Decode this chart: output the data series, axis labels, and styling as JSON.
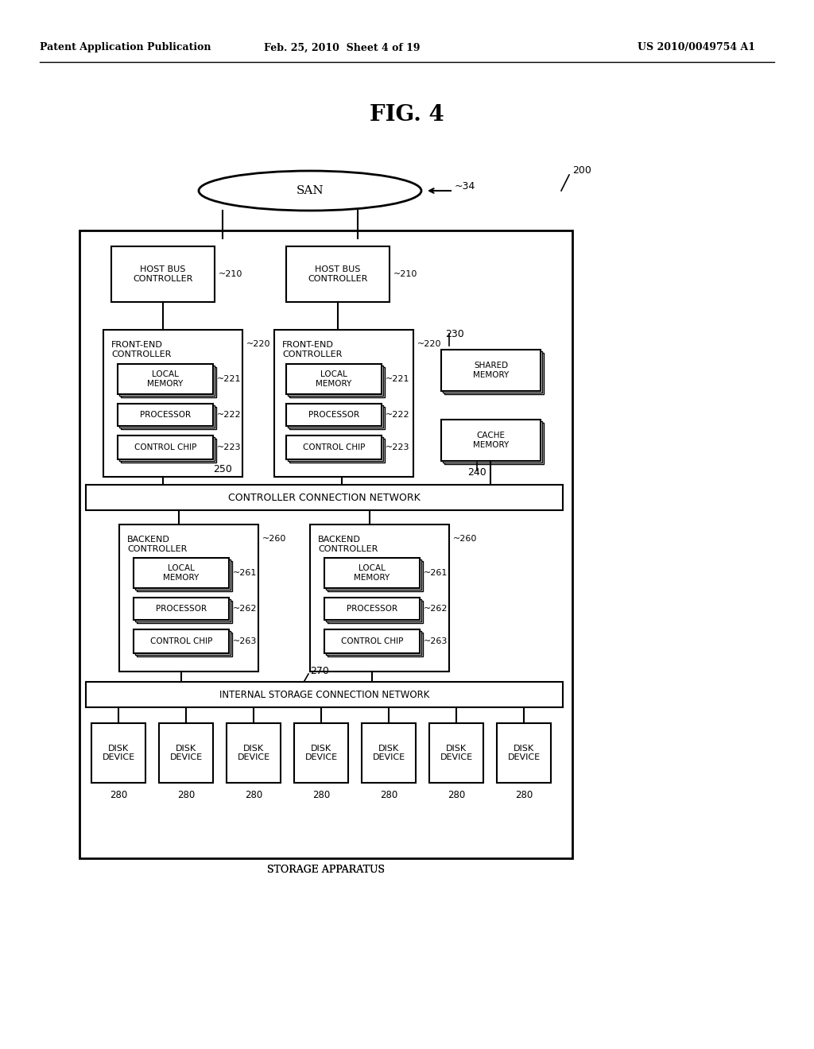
{
  "bg_color": "#ffffff",
  "header_left": "Patent Application Publication",
  "header_mid": "Feb. 25, 2010  Sheet 4 of 19",
  "header_right": "US 2010/0049754 A1",
  "fig_title": "FIG. 4",
  "san_label": "SAN",
  "san_ref": "34",
  "storage_ref": "200",
  "storage_label": "STORAGE APPARATUS"
}
